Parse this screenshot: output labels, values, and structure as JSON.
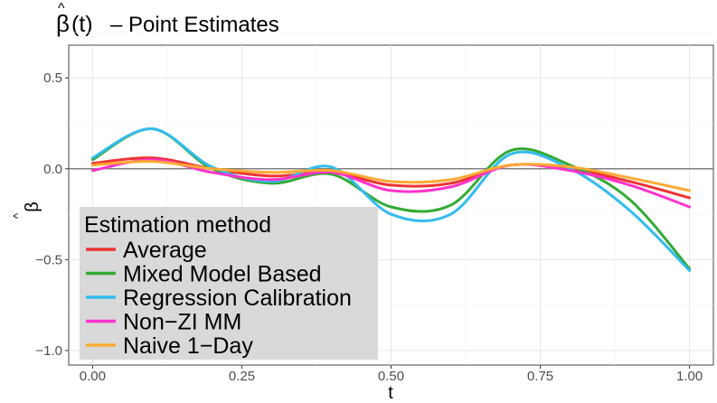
{
  "chart_data": {
    "type": "line",
    "title_symbol": "β",
    "title_hat": "^",
    "title_paren": "(t)",
    "title_text": "– Point Estimates",
    "xlabel": "t",
    "ylabel_symbol": "β",
    "ylabel_hat": "^",
    "xlim": [
      -0.04,
      1.04
    ],
    "ylim": [
      -1.08,
      0.68
    ],
    "x_ticks": [
      0.0,
      0.25,
      0.5,
      0.75,
      1.0
    ],
    "x_tick_labels": [
      "0.00",
      "0.25",
      "0.50",
      "0.75",
      "1.00"
    ],
    "y_ticks": [
      -1.0,
      -0.5,
      0.0,
      0.5
    ],
    "y_tick_labels": [
      "−1.0",
      "−0.5",
      "0.0",
      "0.5"
    ],
    "grid": true,
    "hline": 0,
    "legend": {
      "title": "Estimation method",
      "placement": "bottom-left inside"
    },
    "x": [
      0.0,
      0.1,
      0.2,
      0.3,
      0.4,
      0.5,
      0.6,
      0.7,
      0.8,
      0.9,
      1.0
    ],
    "series": [
      {
        "name": "Average",
        "color": "#ee3333",
        "values": [
          0.03,
          0.06,
          0.0,
          -0.04,
          -0.02,
          -0.09,
          -0.08,
          0.02,
          0.0,
          -0.07,
          -0.16
        ]
      },
      {
        "name": "Mixed Model Based",
        "color": "#33aa33",
        "values": [
          0.05,
          0.22,
          0.0,
          -0.08,
          -0.03,
          -0.21,
          -0.2,
          0.1,
          0.02,
          -0.17,
          -0.55
        ]
      },
      {
        "name": "Regression Calibration",
        "color": "#33bbee",
        "values": [
          0.06,
          0.22,
          0.01,
          -0.07,
          0.01,
          -0.25,
          -0.25,
          0.08,
          0.0,
          -0.23,
          -0.56
        ]
      },
      {
        "name": "Non−ZI MM",
        "color": "#ff33cc",
        "values": [
          -0.01,
          0.05,
          -0.02,
          -0.06,
          -0.02,
          -0.12,
          -0.1,
          0.02,
          -0.01,
          -0.09,
          -0.21
        ]
      },
      {
        "name": "Naive 1−Day",
        "color": "#ffaa33",
        "values": [
          0.02,
          0.04,
          0.0,
          -0.02,
          -0.01,
          -0.07,
          -0.06,
          0.02,
          0.01,
          -0.05,
          -0.12
        ]
      }
    ]
  }
}
